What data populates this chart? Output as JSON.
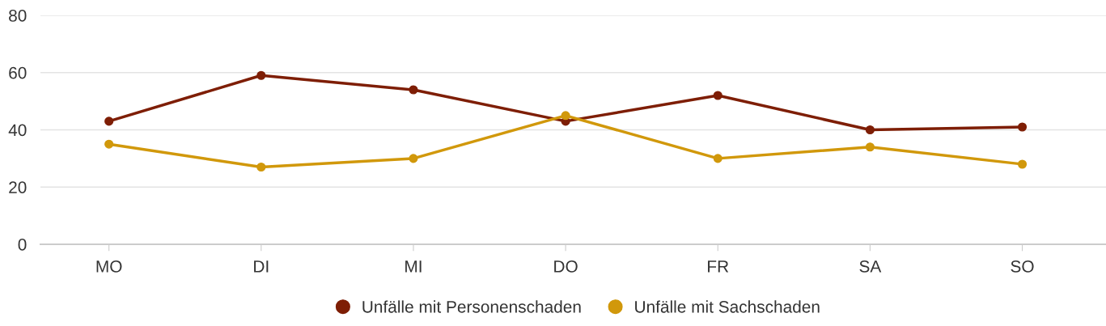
{
  "chart_data": {
    "type": "line",
    "categories": [
      "MO",
      "DI",
      "MI",
      "DO",
      "FR",
      "SA",
      "SO"
    ],
    "series": [
      {
        "name": "Unfälle mit Personenschaden",
        "color": "#7e1e05",
        "values": [
          43,
          59,
          54,
          43,
          52,
          40,
          41
        ]
      },
      {
        "name": "Unfälle mit Sachschaden",
        "color": "#d1980b",
        "values": [
          35,
          27,
          30,
          45,
          30,
          34,
          28
        ]
      }
    ],
    "ylim": [
      0,
      80
    ],
    "yticks": [
      0,
      20,
      40,
      60,
      80
    ],
    "grid": "y",
    "legend": "bottom",
    "marker": "circle",
    "line_style": "solid"
  }
}
